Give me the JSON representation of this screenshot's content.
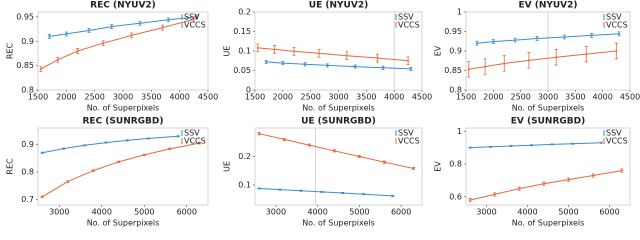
{
  "chart_data": [
    {
      "type": "line",
      "title": "REC (NYUV2)",
      "x_label": "No. of Superpixels",
      "y_label": "REC",
      "xlim": [
        1500,
        4500
      ],
      "xticks": [
        1500,
        2000,
        2500,
        3000,
        3500,
        4000,
        4500
      ],
      "ylim": [
        0.8,
        0.96
      ],
      "yticks": [
        0.8,
        0.85,
        0.9,
        0.95
      ],
      "legend": "upper right",
      "series": [
        {
          "name": "SSV",
          "color": "#3b8ed0",
          "x": [
            1700,
            2000,
            2400,
            2800,
            3300,
            3800,
            4300
          ],
          "values": [
            0.91,
            0.915,
            0.922,
            0.93,
            0.937,
            0.944,
            0.95
          ],
          "errors": [
            0.004,
            0.004,
            0.004,
            0.004,
            0.004,
            0.004,
            0.004
          ]
        },
        {
          "name": "VCCS",
          "color": "#e8693a",
          "x": [
            1550,
            1850,
            2200,
            2650,
            3150,
            3700,
            4250
          ],
          "values": [
            0.843,
            0.862,
            0.88,
            0.896,
            0.912,
            0.928,
            0.945
          ],
          "errors": [
            0.005,
            0.005,
            0.005,
            0.005,
            0.005,
            0.005,
            0.005
          ]
        }
      ]
    },
    {
      "type": "line",
      "title": "UE (NYUV2)",
      "x_label": "No. of Superpixels",
      "y_label": "UE",
      "xlim": [
        1500,
        4500
      ],
      "xticks": [
        1500,
        2000,
        2500,
        3000,
        3500,
        4000,
        4500
      ],
      "ylim": [
        0,
        0.2
      ],
      "yticks": [
        0,
        0.05,
        0.1,
        0.15,
        0.2
      ],
      "legend": "upper right",
      "vline": 4000,
      "series": [
        {
          "name": "SSV",
          "color": "#3b8ed0",
          "x": [
            1700,
            2000,
            2400,
            2800,
            3300,
            3800,
            4300
          ],
          "values": [
            0.072,
            0.069,
            0.066,
            0.063,
            0.06,
            0.057,
            0.054
          ],
          "errors": [
            0.004,
            0.004,
            0.004,
            0.004,
            0.004,
            0.004,
            0.004
          ]
        },
        {
          "name": "VCCS",
          "color": "#e8693a",
          "x": [
            1550,
            1850,
            2200,
            2650,
            3150,
            3700,
            4250
          ],
          "values": [
            0.108,
            0.104,
            0.099,
            0.094,
            0.088,
            0.082,
            0.075
          ],
          "errors": [
            0.01,
            0.01,
            0.01,
            0.01,
            0.01,
            0.01,
            0.01
          ]
        }
      ]
    },
    {
      "type": "line",
      "title": "EV (NYUV2)",
      "x_label": "No. of Superpixels",
      "y_label": "EV",
      "xlim": [
        1500,
        4500
      ],
      "xticks": [
        1500,
        2000,
        2500,
        3000,
        3500,
        4000,
        4500
      ],
      "ylim": [
        0.8,
        1
      ],
      "yticks": [
        0.8,
        0.85,
        0.9,
        0.95,
        1
      ],
      "legend": "upper right",
      "vline": 3000,
      "series": [
        {
          "name": "SSV",
          "color": "#3b8ed0",
          "x": [
            1700,
            2000,
            2400,
            2800,
            3300,
            3800,
            4300
          ],
          "values": [
            0.92,
            0.924,
            0.928,
            0.932,
            0.936,
            0.94,
            0.944
          ],
          "errors": [
            0.005,
            0.005,
            0.005,
            0.005,
            0.005,
            0.005,
            0.005
          ]
        },
        {
          "name": "VCCS",
          "color": "#e8693a",
          "x": [
            1550,
            1850,
            2200,
            2650,
            3150,
            3700,
            4250
          ],
          "values": [
            0.853,
            0.86,
            0.868,
            0.876,
            0.884,
            0.892,
            0.9
          ],
          "errors": [
            0.02,
            0.02,
            0.02,
            0.02,
            0.02,
            0.02,
            0.02
          ]
        }
      ]
    },
    {
      "type": "line",
      "title": "REC (SUNRGBD)",
      "x_label": "No. of Superpixels",
      "y_label": "REC",
      "xlim": [
        2500,
        6500
      ],
      "xticks": [
        3000,
        4000,
        5000,
        6000
      ],
      "ylim": [
        0.68,
        0.96
      ],
      "yticks": [
        0.7,
        0.8,
        0.9
      ],
      "legend": "upper right",
      "series": [
        {
          "name": "SSV",
          "color": "#3b8ed0",
          "x": [
            2600,
            3100,
            3600,
            4100,
            4600,
            5100,
            5800
          ],
          "values": [
            0.87,
            0.885,
            0.897,
            0.907,
            0.915,
            0.922,
            0.93
          ],
          "errors": [
            0.002,
            0.002,
            0.002,
            0.002,
            0.002,
            0.002,
            0.002
          ]
        },
        {
          "name": "VCCS",
          "color": "#e8693a",
          "x": [
            2600,
            3200,
            3800,
            4400,
            5000,
            5600,
            6300
          ],
          "values": [
            0.71,
            0.765,
            0.805,
            0.837,
            0.862,
            0.884,
            0.905
          ],
          "errors": [
            0.003,
            0.003,
            0.003,
            0.003,
            0.003,
            0.003,
            0.003
          ]
        }
      ]
    },
    {
      "type": "line",
      "title": "UE (SUNRGBD)",
      "x_label": "No. of Superpixels",
      "y_label": "UE",
      "xlim": [
        2500,
        6500
      ],
      "xticks": [
        3000,
        4000,
        5000,
        6000
      ],
      "ylim": [
        0.03,
        0.3
      ],
      "yticks": [
        0.1,
        0.2
      ],
      "legend": "upper right",
      "vline": 3950,
      "series": [
        {
          "name": "SSV",
          "color": "#3b8ed0",
          "x": [
            2600,
            3100,
            3600,
            4100,
            4600,
            5100,
            5800
          ],
          "values": [
            0.088,
            0.084,
            0.08,
            0.076,
            0.072,
            0.068,
            0.062
          ],
          "errors": [
            0.002,
            0.002,
            0.002,
            0.002,
            0.002,
            0.002,
            0.002
          ]
        },
        {
          "name": "VCCS",
          "color": "#e8693a",
          "x": [
            2600,
            3200,
            3800,
            4400,
            5000,
            5600,
            6300
          ],
          "values": [
            0.28,
            0.26,
            0.24,
            0.22,
            0.2,
            0.18,
            0.158
          ],
          "errors": [
            0.004,
            0.004,
            0.004,
            0.004,
            0.004,
            0.004,
            0.004
          ]
        }
      ]
    },
    {
      "type": "line",
      "title": "EV (SUNRGBD)",
      "x_label": "No. of Superpixels",
      "y_label": "EV",
      "xlim": [
        2500,
        6500
      ],
      "xticks": [
        3000,
        4000,
        5000,
        6000
      ],
      "ylim": [
        0.55,
        1.02
      ],
      "yticks": [
        0.6,
        0.8,
        1
      ],
      "legend": "upper right",
      "series": [
        {
          "name": "SSV",
          "color": "#3b8ed0",
          "x": [
            2600,
            3100,
            3600,
            4100,
            4600,
            5100,
            5800
          ],
          "values": [
            0.9,
            0.905,
            0.91,
            0.915,
            0.92,
            0.924,
            0.93
          ],
          "errors": [
            0.003,
            0.003,
            0.003,
            0.003,
            0.003,
            0.003,
            0.003
          ]
        },
        {
          "name": "VCCS",
          "color": "#e8693a",
          "x": [
            2600,
            3200,
            3800,
            4400,
            5000,
            5600,
            6300
          ],
          "values": [
            0.58,
            0.615,
            0.65,
            0.68,
            0.705,
            0.73,
            0.76
          ],
          "errors": [
            0.01,
            0.01,
            0.01,
            0.01,
            0.01,
            0.01,
            0.01
          ]
        }
      ]
    }
  ]
}
